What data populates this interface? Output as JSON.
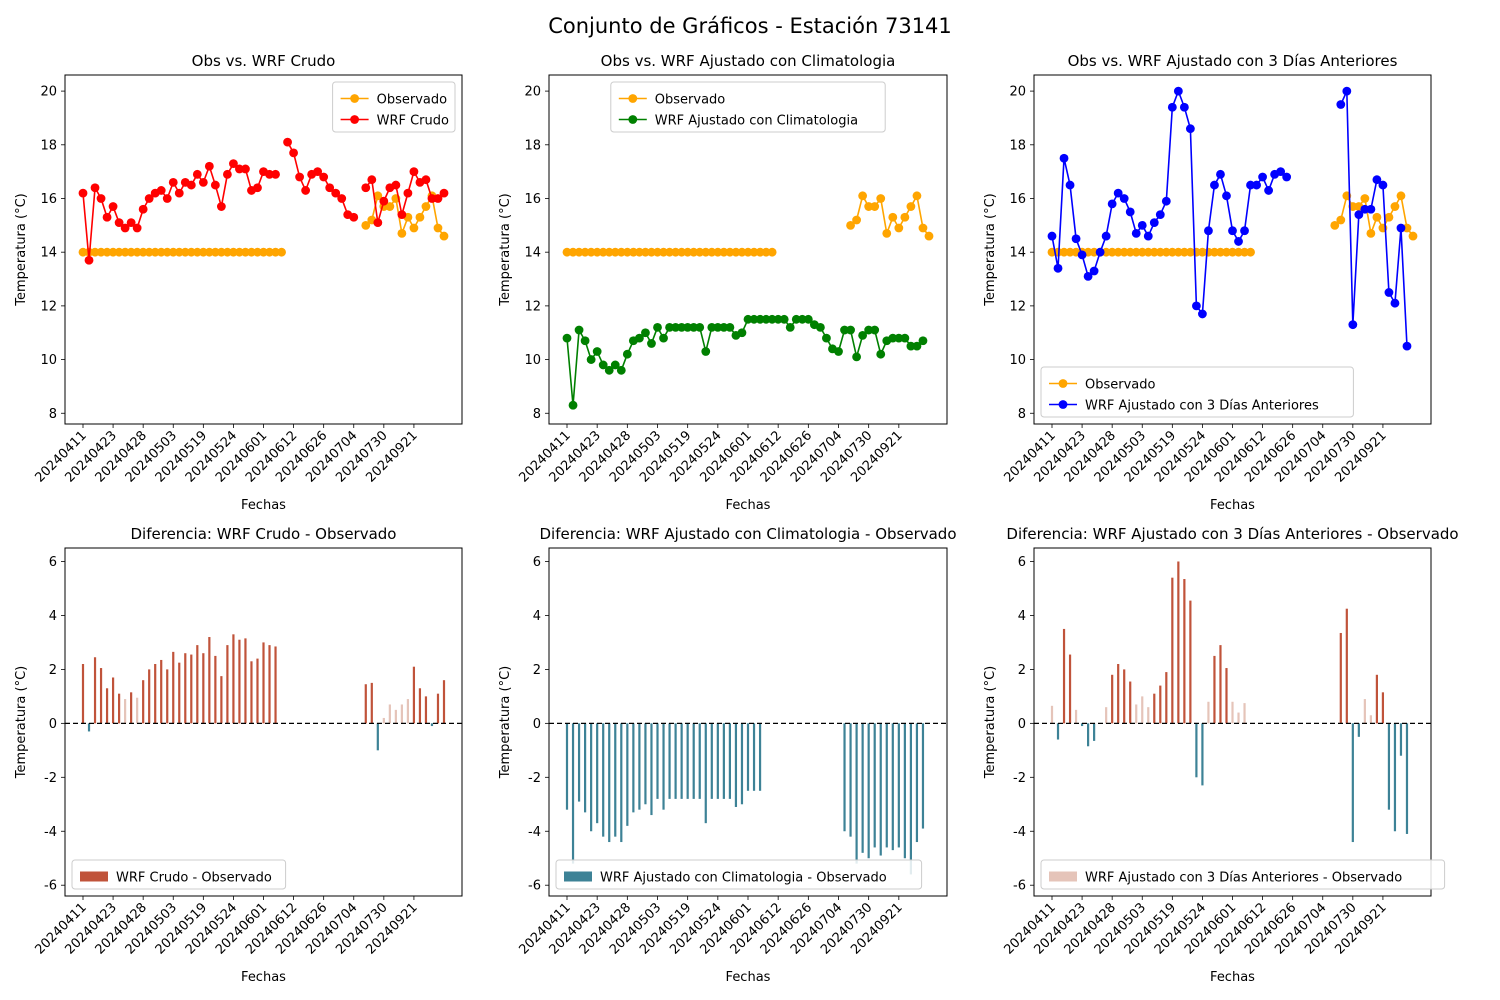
{
  "suptitle": "Conjunto de Gráficos - Estación 73141",
  "colors": {
    "observed": "#ffa500",
    "wrf_raw": "#ff0000",
    "wrf_clim": "#008000",
    "wrf_3d": "#0000ff",
    "diff_pos": "#c0533a",
    "diff_neg": "#3d8296",
    "diff_pos_light": "#e5c4b9",
    "zero_line": "#000000"
  },
  "x_tick_labels": [
    "20240411",
    "20240423",
    "20240428",
    "20240503",
    "20240519",
    "20240524",
    "20240601",
    "20240612",
    "20240626",
    "20240704",
    "20240730",
    "20240921"
  ],
  "chart_data": [
    {
      "type": "line",
      "title": "Obs vs. WRF Crudo",
      "xlabel": "Fechas",
      "ylabel": "Temperatura (°C)",
      "ylim": [
        7.6,
        20.6
      ],
      "yticks": [
        8,
        10,
        12,
        14,
        16,
        18,
        20
      ],
      "legend_loc": "upper right",
      "series": [
        {
          "name": "Observado",
          "color_key": "observed",
          "values": [
            14,
            14,
            14,
            14,
            14,
            14,
            14,
            14,
            14,
            14,
            14,
            14,
            14,
            14,
            14,
            14,
            14,
            14,
            14,
            14,
            14,
            14,
            14,
            14,
            14,
            14,
            14,
            14,
            14,
            14,
            14,
            14,
            14,
            14,
            null,
            null,
            null,
            null,
            null,
            null,
            null,
            null,
            null,
            null,
            null,
            null,
            null,
            15.0,
            15.2,
            16.1,
            15.7,
            15.7,
            16.0,
            14.7,
            15.3,
            14.9,
            15.3,
            15.7,
            16.1,
            14.9,
            14.6
          ]
        },
        {
          "name": "WRF Crudo",
          "color_key": "wrf_raw",
          "values": [
            16.2,
            13.7,
            16.4,
            16.0,
            15.3,
            15.7,
            15.1,
            14.9,
            15.1,
            14.9,
            15.6,
            16.0,
            16.2,
            16.3,
            16.0,
            16.6,
            16.2,
            16.6,
            16.5,
            16.9,
            16.6,
            17.2,
            16.5,
            15.7,
            16.9,
            17.3,
            17.1,
            17.1,
            16.3,
            16.4,
            17.0,
            16.9,
            16.9,
            null,
            18.1,
            17.7,
            16.8,
            16.3,
            16.9,
            17.0,
            16.8,
            16.4,
            16.2,
            16.0,
            15.4,
            15.3,
            null,
            16.4,
            16.7,
            15.1,
            15.9,
            16.4,
            16.5,
            15.4,
            16.2,
            17.0,
            16.6,
            16.7,
            16.0,
            16.0,
            16.2
          ]
        }
      ]
    },
    {
      "type": "line",
      "title": "Obs vs. WRF Ajustado con Climatologia",
      "xlabel": "Fechas",
      "ylabel": "Temperatura (°C)",
      "ylim": [
        7.6,
        20.6
      ],
      "yticks": [
        8,
        10,
        12,
        14,
        16,
        18,
        20
      ],
      "legend_loc": "upper center",
      "series": [
        {
          "name": "Observado",
          "color_key": "observed",
          "values": [
            14,
            14,
            14,
            14,
            14,
            14,
            14,
            14,
            14,
            14,
            14,
            14,
            14,
            14,
            14,
            14,
            14,
            14,
            14,
            14,
            14,
            14,
            14,
            14,
            14,
            14,
            14,
            14,
            14,
            14,
            14,
            14,
            14,
            14,
            14,
            null,
            null,
            null,
            null,
            null,
            null,
            null,
            null,
            null,
            null,
            null,
            null,
            15.0,
            15.2,
            16.1,
            15.7,
            15.7,
            16.0,
            14.7,
            15.3,
            14.9,
            15.3,
            15.7,
            16.1,
            14.9,
            14.6
          ]
        },
        {
          "name": "WRF Ajustado con Climatologia",
          "color_key": "wrf_clim",
          "values": [
            10.8,
            8.3,
            11.1,
            10.7,
            10.0,
            10.3,
            9.8,
            9.6,
            9.8,
            9.6,
            10.2,
            10.7,
            10.8,
            11.0,
            10.6,
            11.2,
            10.8,
            11.2,
            11.2,
            11.2,
            11.2,
            11.2,
            11.2,
            10.3,
            11.2,
            11.2,
            11.2,
            11.2,
            10.9,
            11.0,
            11.5,
            11.5,
            11.5,
            11.5,
            11.5,
            11.5,
            11.5,
            11.2,
            11.5,
            11.5,
            11.5,
            11.3,
            11.2,
            10.8,
            10.4,
            10.3,
            11.1,
            11.1,
            10.1,
            10.9,
            11.1,
            11.1,
            10.2,
            10.7,
            10.8,
            10.8,
            10.8,
            10.5,
            10.5,
            10.7,
            null
          ]
        }
      ]
    },
    {
      "type": "line",
      "title": "Obs vs. WRF Ajustado con 3 Días Anteriores",
      "xlabel": "Fechas",
      "ylabel": "Temperatura (°C)",
      "ylim": [
        7.6,
        20.6
      ],
      "yticks": [
        8,
        10,
        12,
        14,
        16,
        18,
        20
      ],
      "legend_loc": "lower left",
      "series": [
        {
          "name": "Observado",
          "color_key": "observed",
          "values": [
            14,
            14,
            14,
            14,
            14,
            14,
            14,
            14,
            14,
            14,
            14,
            14,
            14,
            14,
            14,
            14,
            14,
            14,
            14,
            14,
            14,
            14,
            14,
            14,
            14,
            14,
            14,
            14,
            14,
            14,
            14,
            14,
            14,
            14,
            null,
            null,
            null,
            null,
            null,
            null,
            null,
            null,
            null,
            null,
            null,
            null,
            null,
            15.0,
            15.2,
            16.1,
            15.7,
            15.7,
            16.0,
            14.7,
            15.3,
            14.9,
            15.3,
            15.7,
            16.1,
            14.9,
            14.6
          ]
        },
        {
          "name": "WRF Ajustado con 3 Días Anteriores",
          "color_key": "wrf_3d",
          "values": [
            14.6,
            13.4,
            17.5,
            16.5,
            14.5,
            13.9,
            13.1,
            13.3,
            14.0,
            14.6,
            15.8,
            16.2,
            16.0,
            15.5,
            14.7,
            15.0,
            14.6,
            15.1,
            15.4,
            15.9,
            19.4,
            20.0,
            19.4,
            18.6,
            12.0,
            11.7,
            14.8,
            16.5,
            16.9,
            16.1,
            14.8,
            14.4,
            14.8,
            16.5,
            16.5,
            16.8,
            16.3,
            16.9,
            17.0,
            16.8,
            null,
            null,
            null,
            null,
            null,
            null,
            null,
            null,
            19.5,
            20.0,
            11.3,
            15.4,
            15.6,
            15.6,
            16.7,
            16.5,
            12.5,
            12.1,
            14.9,
            10.5,
            null
          ]
        }
      ]
    },
    {
      "type": "bar",
      "title": "Diferencia: WRF Crudo - Observado",
      "xlabel": "Fechas",
      "ylabel": "Temperatura (°C)",
      "ylim": [
        -6.4,
        6.5
      ],
      "yticks": [
        -6,
        -4,
        -2,
        0,
        2,
        4,
        6
      ],
      "legend_loc": "lower left",
      "series": [
        {
          "name": "WRF Crudo - Observado",
          "color_key": "diff_pos",
          "values": [
            2.2,
            -0.3,
            2.45,
            2.05,
            1.3,
            1.7,
            1.1,
            0.9,
            1.15,
            0.95,
            1.6,
            2.0,
            2.2,
            2.35,
            2.0,
            2.65,
            2.25,
            2.6,
            2.55,
            2.9,
            2.6,
            3.2,
            2.5,
            1.75,
            2.9,
            3.3,
            3.1,
            3.15,
            2.3,
            2.4,
            3.0,
            2.9,
            2.85,
            null,
            null,
            null,
            null,
            null,
            null,
            null,
            null,
            null,
            null,
            null,
            null,
            null,
            null,
            1.45,
            1.5,
            -1.0,
            0.2,
            0.7,
            0.5,
            0.7,
            0.9,
            2.1,
            1.3,
            1.0,
            -0.1,
            1.1,
            1.6
          ]
        }
      ]
    },
    {
      "type": "bar",
      "title": "Diferencia: WRF Ajustado con Climatologia - Observado",
      "xlabel": "Fechas",
      "ylabel": "Temperatura (°C)",
      "ylim": [
        -6.4,
        6.5
      ],
      "yticks": [
        -6,
        -4,
        -2,
        0,
        2,
        4,
        6
      ],
      "legend_loc": "lower left",
      "series": [
        {
          "name": "WRF Ajustado con Climatologia - Observado",
          "color_key": "diff_neg",
          "values": [
            -3.2,
            -5.2,
            -2.9,
            -3.3,
            -4.0,
            -3.7,
            -4.2,
            -4.4,
            -4.2,
            -4.4,
            -3.8,
            -3.3,
            -3.2,
            -3.0,
            -3.4,
            -2.8,
            -3.2,
            -2.8,
            -2.8,
            -2.8,
            -2.8,
            -2.8,
            -2.8,
            -3.7,
            -2.8,
            -2.8,
            -2.8,
            -2.8,
            -3.1,
            -3.0,
            -2.5,
            -2.5,
            -2.5,
            null,
            null,
            null,
            null,
            null,
            null,
            null,
            null,
            null,
            null,
            null,
            null,
            null,
            -4.0,
            -4.2,
            -5.2,
            -4.8,
            -5.0,
            -4.6,
            -4.9,
            -4.6,
            -4.7,
            -4.6,
            -5.0,
            -5.6,
            -4.4,
            -3.9,
            null
          ]
        }
      ]
    },
    {
      "type": "bar",
      "title": "Diferencia: WRF Ajustado con 3 Días Anteriores - Observado",
      "xlabel": "Fechas",
      "ylabel": "Temperatura (°C)",
      "ylim": [
        -6.4,
        6.5
      ],
      "yticks": [
        -6,
        -4,
        -2,
        0,
        2,
        4,
        6
      ],
      "legend_loc": "lower left",
      "series": [
        {
          "name": "WRF Ajustado con 3 Días Anteriores - Observado",
          "color_key": "diff_pos_light",
          "values": [
            0.65,
            -0.6,
            3.5,
            2.55,
            0.5,
            -0.1,
            -0.85,
            -0.65,
            0.0,
            0.6,
            1.8,
            2.2,
            2.0,
            1.55,
            0.7,
            1.0,
            0.6,
            1.1,
            1.4,
            1.9,
            5.4,
            6.0,
            5.35,
            4.55,
            -2.0,
            -2.3,
            0.8,
            2.5,
            2.9,
            2.05,
            0.8,
            0.4,
            0.75,
            null,
            null,
            null,
            null,
            null,
            null,
            null,
            null,
            null,
            null,
            null,
            null,
            null,
            null,
            null,
            3.35,
            4.25,
            -4.4,
            -0.5,
            0.9,
            0.3,
            1.8,
            1.15,
            -3.2,
            -4.0,
            -1.2,
            -4.1,
            null
          ]
        }
      ]
    }
  ]
}
